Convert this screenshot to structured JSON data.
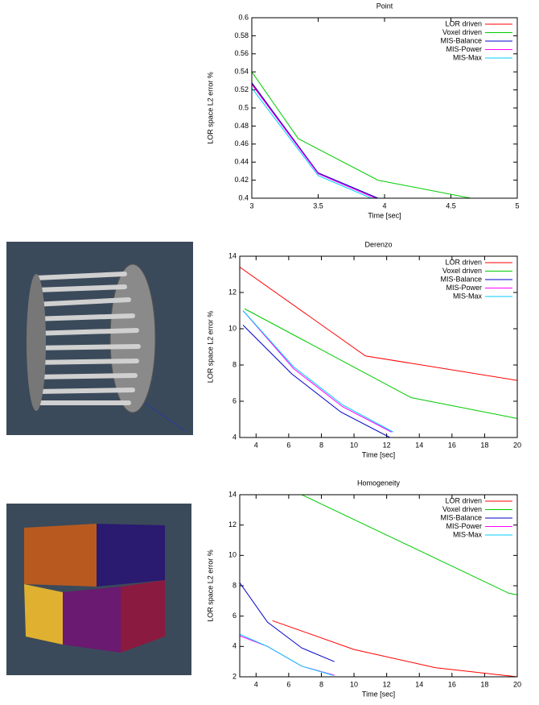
{
  "chart_data": [
    {
      "type": "line",
      "title": "Point",
      "x_label": "Time [sec]",
      "y_label": "LOR space L2 error %",
      "xlim": [
        3,
        5
      ],
      "xticks": [
        3,
        3.5,
        4,
        4.5,
        5
      ],
      "ylim": [
        0.4,
        0.6
      ],
      "yticks": [
        0.4,
        0.42,
        0.44,
        0.46,
        0.48,
        0.5,
        0.52,
        0.54,
        0.56,
        0.58,
        0.6
      ],
      "legend": "upper right",
      "series": [
        {
          "name": "LOR driven",
          "color": "#ff0000",
          "x": [
            3,
            3.5,
            3.95
          ],
          "values": [
            0.527,
            0.428,
            0.4
          ]
        },
        {
          "name": "Voxel driven",
          "color": "#00cc00",
          "x": [
            3,
            3.35,
            3.95,
            4.65
          ],
          "values": [
            0.54,
            0.466,
            0.42,
            0.4
          ]
        },
        {
          "name": "MIS-Balance",
          "color": "#0000cc",
          "x": [
            3,
            3.5,
            3.95
          ],
          "values": [
            0.528,
            0.428,
            0.4
          ]
        },
        {
          "name": "MIS-Power",
          "color": "#ff00ff",
          "x": [
            3,
            3.5,
            3.93
          ],
          "values": [
            0.526,
            0.427,
            0.4
          ]
        },
        {
          "name": "MIS-Max",
          "color": "#00ccff",
          "x": [
            3,
            3.5,
            3.9
          ],
          "values": [
            0.522,
            0.425,
            0.4
          ]
        }
      ]
    },
    {
      "type": "line",
      "title": "Derenzo",
      "x_label": "Time [sec]",
      "y_label": "LOR space L2 error %",
      "xlim": [
        3,
        20
      ],
      "xticks": [
        4,
        6,
        8,
        10,
        12,
        14,
        16,
        18,
        20
      ],
      "ylim": [
        4,
        14
      ],
      "yticks": [
        4,
        6,
        8,
        10,
        12,
        14
      ],
      "legend": "upper right",
      "series": [
        {
          "name": "LOR driven",
          "color": "#ff0000",
          "x": [
            3,
            10.7,
            20
          ],
          "values": [
            13.4,
            8.5,
            7.15
          ]
        },
        {
          "name": "Voxel driven",
          "color": "#00cc00",
          "x": [
            3.3,
            13.5,
            20
          ],
          "values": [
            11.1,
            6.2,
            5.05
          ]
        },
        {
          "name": "MIS-Balance",
          "color": "#0000cc",
          "x": [
            3.2,
            6.2,
            9.2,
            12.2
          ],
          "values": [
            10.2,
            7.5,
            5.4,
            4.0
          ]
        },
        {
          "name": "MIS-Power",
          "color": "#ff00ff",
          "x": [
            3.2,
            6.3,
            9.3,
            12.3
          ],
          "values": [
            11,
            7.8,
            5.7,
            4.3
          ]
        },
        {
          "name": "MIS-Max",
          "color": "#00ccff",
          "x": [
            3.2,
            6.3,
            9.3,
            12.4
          ],
          "values": [
            11,
            7.9,
            5.8,
            4.3
          ]
        }
      ]
    },
    {
      "type": "line",
      "title": "Homogeneity",
      "x_label": "Time [sec]",
      "y_label": "LOR space L2 error %",
      "xlim": [
        3,
        20
      ],
      "xticks": [
        4,
        6,
        8,
        10,
        12,
        14,
        16,
        18,
        20
      ],
      "ylim": [
        2,
        14
      ],
      "yticks": [
        2,
        4,
        6,
        8,
        10,
        12,
        14
      ],
      "legend": "upper right",
      "series": [
        {
          "name": "LOR driven",
          "color": "#ff0000",
          "x": [
            5,
            10,
            15,
            20
          ],
          "values": [
            5.7,
            3.8,
            2.6,
            2.0
          ]
        },
        {
          "name": "Voxel driven",
          "color": "#00cc00",
          "x": [
            6.8,
            19.5,
            20
          ],
          "values": [
            14,
            7.5,
            7.4
          ]
        },
        {
          "name": "MIS-Balance",
          "color": "#0000cc",
          "x": [
            3,
            4.7,
            6.8,
            8.8
          ],
          "values": [
            8.2,
            5.6,
            3.9,
            3.0
          ]
        },
        {
          "name": "MIS-Power",
          "color": "#ff00ff",
          "x": [
            3,
            4.7,
            6.8,
            8.8
          ],
          "values": [
            4.7,
            4.0,
            2.7,
            2.1
          ]
        },
        {
          "name": "MIS-Max",
          "color": "#00ccff",
          "x": [
            3,
            4.7,
            6.8,
            8.7
          ],
          "values": [
            4.8,
            4.0,
            2.7,
            2.1
          ]
        }
      ]
    }
  ]
}
